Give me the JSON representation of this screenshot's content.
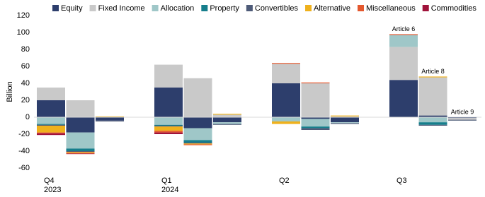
{
  "chart_data": {
    "type": "stacked-bar",
    "y_label": "Billion",
    "categories": [
      "Q4 2023",
      null,
      null,
      "Q1 2024",
      null,
      null,
      "Q2",
      null,
      null,
      "Q3",
      null,
      null
    ],
    "series": [
      {
        "name": "Equity",
        "color": "#2d3e6c",
        "values": [
          20,
          -18,
          -4,
          35,
          -13,
          -6,
          40,
          -2,
          -6,
          44,
          2,
          -1
        ]
      },
      {
        "name": "Fixed Income",
        "color": "#c9c9c9",
        "values": [
          15,
          20,
          0,
          27,
          46,
          3,
          23,
          40,
          1,
          39,
          45,
          -2
        ]
      },
      {
        "name": "Allocation",
        "color": "#9fc7c8",
        "values": [
          -8,
          -19,
          0,
          -9,
          -14,
          -2,
          -5,
          -9,
          -1,
          14,
          -6,
          0
        ]
      },
      {
        "name": "Property",
        "color": "#167e8c",
        "values": [
          -1,
          -3,
          0,
          -1,
          -3,
          0,
          0,
          -2,
          0,
          0,
          -3,
          0
        ]
      },
      {
        "name": "Convertibles",
        "color": "#4e5b78",
        "values": [
          -1,
          -1,
          -1,
          -1,
          -1,
          -1,
          0,
          -2,
          -1,
          0,
          -1,
          -1
        ]
      },
      {
        "name": "Alternative",
        "color": "#efb11c",
        "values": [
          -8,
          -1,
          1,
          -5,
          -1,
          1,
          -3,
          0,
          1,
          0,
          1,
          0
        ]
      },
      {
        "name": "Miscellaneous",
        "color": "#e4582e",
        "values": [
          -1,
          -1,
          0,
          -2,
          -1,
          0,
          1,
          1,
          0,
          1,
          0,
          0
        ]
      },
      {
        "name": "Commodities",
        "color": "#a0133b",
        "values": [
          -2,
          -0.5,
          0,
          -2,
          0,
          0,
          0,
          0,
          0,
          0,
          0,
          0
        ]
      }
    ],
    "annotations": [
      "Article 6",
      "Article 8",
      "Article 9"
    ],
    "ylim": [
      -60,
      120
    ],
    "yticks": [
      -60,
      -40,
      -20,
      0,
      20,
      40,
      60,
      80,
      100,
      120
    ],
    "grid": false
  }
}
